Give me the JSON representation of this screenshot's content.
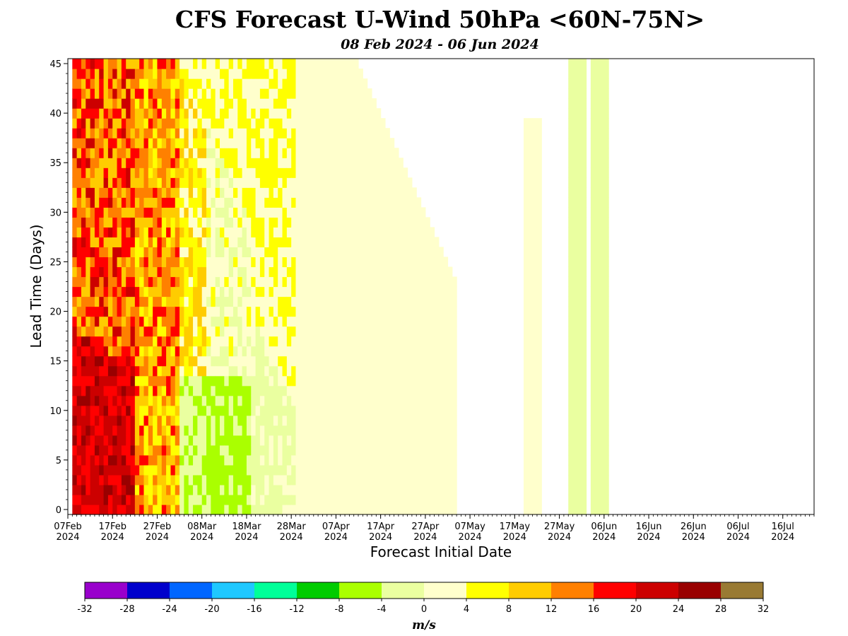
{
  "chart_data": {
    "type": "heatmap",
    "title": "CFS Forecast U-Wind 50hPa <60N-75N>",
    "subtitle": "08 Feb 2024 - 06 Jun 2024",
    "xlabel": "Forecast Initial Date",
    "ylabel": "Lead Time (Days)",
    "x_range": [
      "2024-02-07",
      "2024-07-23"
    ],
    "y_range": [
      -0.5,
      45.5
    ],
    "x_ticks": [
      {
        "date": "2024-02-07",
        "label": "07Feb",
        "year": "2024"
      },
      {
        "date": "2024-02-17",
        "label": "17Feb",
        "year": "2024"
      },
      {
        "date": "2024-02-27",
        "label": "27Feb",
        "year": "2024"
      },
      {
        "date": "2024-03-08",
        "label": "08Mar",
        "year": "2024"
      },
      {
        "date": "2024-03-18",
        "label": "18Mar",
        "year": "2024"
      },
      {
        "date": "2024-03-28",
        "label": "28Mar",
        "year": "2024"
      },
      {
        "date": "2024-04-07",
        "label": "07Apr",
        "year": "2024"
      },
      {
        "date": "2024-04-17",
        "label": "17Apr",
        "year": "2024"
      },
      {
        "date": "2024-04-27",
        "label": "27Apr",
        "year": "2024"
      },
      {
        "date": "2024-05-07",
        "label": "07May",
        "year": "2024"
      },
      {
        "date": "2024-05-17",
        "label": "17May",
        "year": "2024"
      },
      {
        "date": "2024-05-27",
        "label": "27May",
        "year": "2024"
      },
      {
        "date": "2024-06-06",
        "label": "06Jun",
        "year": "2024"
      },
      {
        "date": "2024-06-16",
        "label": "16Jun",
        "year": "2024"
      },
      {
        "date": "2024-06-26",
        "label": "26Jun",
        "year": "2024"
      },
      {
        "date": "2024-07-06",
        "label": "06Jul",
        "year": "2024"
      },
      {
        "date": "2024-07-16",
        "label": "16Jul",
        "year": "2024"
      }
    ],
    "y_ticks": [
      0,
      5,
      10,
      15,
      20,
      25,
      30,
      35,
      40,
      45
    ],
    "colorbar": {
      "unit": "m/s",
      "levels": [
        -32,
        -28,
        -24,
        -20,
        -16,
        -12,
        -8,
        -4,
        0,
        4,
        8,
        12,
        16,
        20,
        24,
        28,
        32
      ],
      "colors": [
        "#9900cc",
        "#0000cc",
        "#0066ff",
        "#1fc8ff",
        "#00ff99",
        "#00cc00",
        "#aaff00",
        "#eaffa0",
        "#ffffcc",
        "#ffff00",
        "#ffcc00",
        "#ff8000",
        "#ff0000",
        "#cc0000",
        "#990000",
        "#997a33"
      ]
    },
    "regions": [
      {
        "description": "Initial dates 08 Feb - 22 Mar 2024: strong westerlies, 16-28 m/s at short lead times in early Feb, 8-20 m/s mixed at longer leads",
        "init_start": "2024-02-08",
        "init_end": "2024-03-22"
      },
      {
        "description": "Initial dates ~08 Mar - 18 Mar: weak easterlies -8 to -4 m/s at lead 0-15 days",
        "init_start": "2024-03-08",
        "init_end": "2024-03-18"
      },
      {
        "description": "Initial dates 18 Mar - 28 Mar: -4 to 0 m/s",
        "init_start": "2024-03-18",
        "init_end": "2024-03-28"
      },
      {
        "description": "Forecasts verifying mid-April to mid-May: 0-8 m/s band",
        "init_start": "2024-03-28",
        "init_end": "2024-04-27"
      },
      {
        "description": "Late May - July verifying dates: weak -4 to 4 m/s streaks",
        "init_start": "2024-05-20",
        "init_end": "2024-07-23"
      }
    ]
  }
}
